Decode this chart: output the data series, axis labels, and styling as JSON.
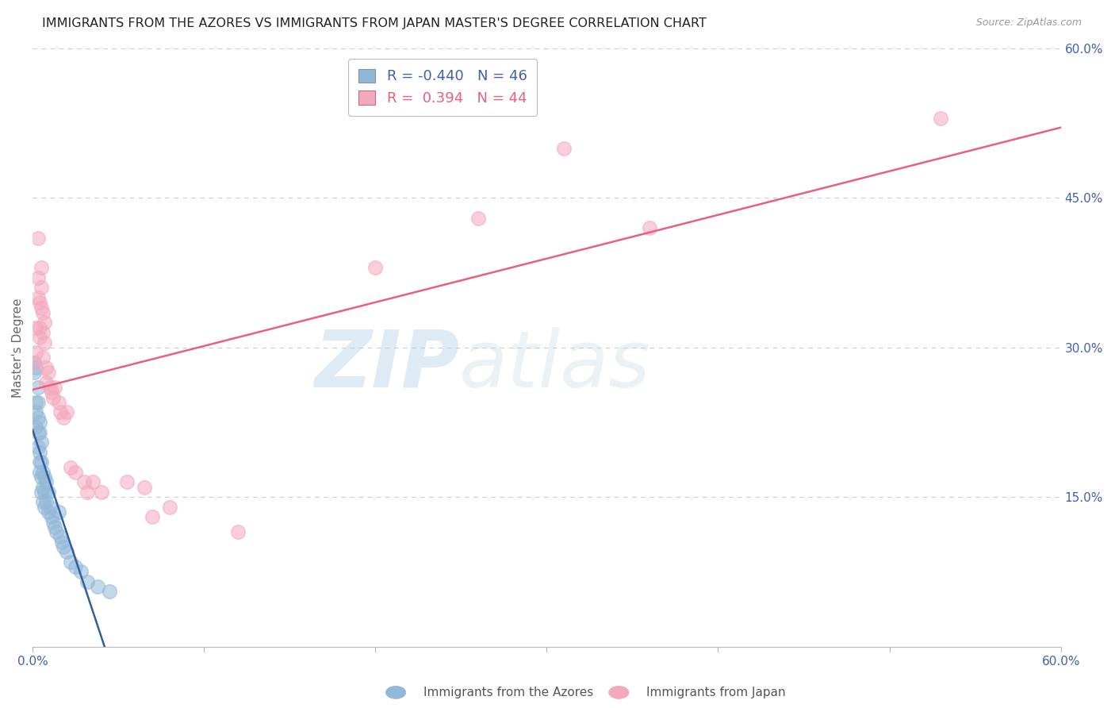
{
  "title": "IMMIGRANTS FROM THE AZORES VS IMMIGRANTS FROM JAPAN MASTER'S DEGREE CORRELATION CHART",
  "source": "Source: ZipAtlas.com",
  "ylabel": "Master's Degree",
  "legend_label_blue": "Immigrants from the Azores",
  "legend_label_pink": "Immigrants from Japan",
  "R_blue": -0.44,
  "N_blue": 46,
  "R_pink": 0.394,
  "N_pink": 44,
  "xlim": [
    0.0,
    0.6
  ],
  "ylim": [
    0.0,
    0.6
  ],
  "grid_color": "#cccccc",
  "background_color": "#ffffff",
  "blue_color": "#92b8d8",
  "pink_color": "#f4a8bc",
  "blue_line_color": "#3060a0",
  "pink_line_color": "#e86080",
  "title_fontsize": 11.5,
  "tick_fontsize": 11,
  "legend_fontsize": 13,
  "tick_color": "#4060b0",
  "blue_dots": [
    [
      0.001,
      0.285
    ],
    [
      0.001,
      0.275
    ],
    [
      0.002,
      0.28
    ],
    [
      0.002,
      0.245
    ],
    [
      0.002,
      0.235
    ],
    [
      0.002,
      0.22
    ],
    [
      0.003,
      0.26
    ],
    [
      0.003,
      0.245
    ],
    [
      0.003,
      0.23
    ],
    [
      0.003,
      0.215
    ],
    [
      0.003,
      0.2
    ],
    [
      0.004,
      0.225
    ],
    [
      0.004,
      0.215
    ],
    [
      0.004,
      0.195
    ],
    [
      0.004,
      0.185
    ],
    [
      0.004,
      0.175
    ],
    [
      0.005,
      0.205
    ],
    [
      0.005,
      0.185
    ],
    [
      0.005,
      0.17
    ],
    [
      0.005,
      0.155
    ],
    [
      0.006,
      0.175
    ],
    [
      0.006,
      0.16
    ],
    [
      0.006,
      0.145
    ],
    [
      0.007,
      0.17
    ],
    [
      0.007,
      0.155
    ],
    [
      0.007,
      0.14
    ],
    [
      0.008,
      0.165
    ],
    [
      0.008,
      0.145
    ],
    [
      0.009,
      0.155
    ],
    [
      0.009,
      0.135
    ],
    [
      0.01,
      0.14
    ],
    [
      0.011,
      0.13
    ],
    [
      0.012,
      0.125
    ],
    [
      0.013,
      0.12
    ],
    [
      0.014,
      0.115
    ],
    [
      0.015,
      0.135
    ],
    [
      0.016,
      0.11
    ],
    [
      0.017,
      0.105
    ],
    [
      0.018,
      0.1
    ],
    [
      0.02,
      0.095
    ],
    [
      0.022,
      0.085
    ],
    [
      0.025,
      0.08
    ],
    [
      0.028,
      0.075
    ],
    [
      0.032,
      0.065
    ],
    [
      0.038,
      0.06
    ],
    [
      0.045,
      0.055
    ]
  ],
  "pink_dots": [
    [
      0.001,
      0.285
    ],
    [
      0.002,
      0.32
    ],
    [
      0.002,
      0.295
    ],
    [
      0.003,
      0.41
    ],
    [
      0.003,
      0.37
    ],
    [
      0.003,
      0.35
    ],
    [
      0.004,
      0.345
    ],
    [
      0.004,
      0.32
    ],
    [
      0.004,
      0.31
    ],
    [
      0.005,
      0.38
    ],
    [
      0.005,
      0.36
    ],
    [
      0.005,
      0.34
    ],
    [
      0.006,
      0.335
    ],
    [
      0.006,
      0.315
    ],
    [
      0.006,
      0.29
    ],
    [
      0.007,
      0.325
    ],
    [
      0.007,
      0.305
    ],
    [
      0.008,
      0.28
    ],
    [
      0.008,
      0.265
    ],
    [
      0.009,
      0.275
    ],
    [
      0.01,
      0.26
    ],
    [
      0.011,
      0.255
    ],
    [
      0.012,
      0.25
    ],
    [
      0.013,
      0.26
    ],
    [
      0.015,
      0.245
    ],
    [
      0.016,
      0.235
    ],
    [
      0.018,
      0.23
    ],
    [
      0.02,
      0.235
    ],
    [
      0.022,
      0.18
    ],
    [
      0.025,
      0.175
    ],
    [
      0.03,
      0.165
    ],
    [
      0.032,
      0.155
    ],
    [
      0.035,
      0.165
    ],
    [
      0.04,
      0.155
    ],
    [
      0.055,
      0.165
    ],
    [
      0.065,
      0.16
    ],
    [
      0.07,
      0.13
    ],
    [
      0.08,
      0.14
    ],
    [
      0.12,
      0.115
    ],
    [
      0.2,
      0.38
    ],
    [
      0.26,
      0.43
    ],
    [
      0.31,
      0.5
    ],
    [
      0.36,
      0.42
    ],
    [
      0.53,
      0.53
    ]
  ]
}
